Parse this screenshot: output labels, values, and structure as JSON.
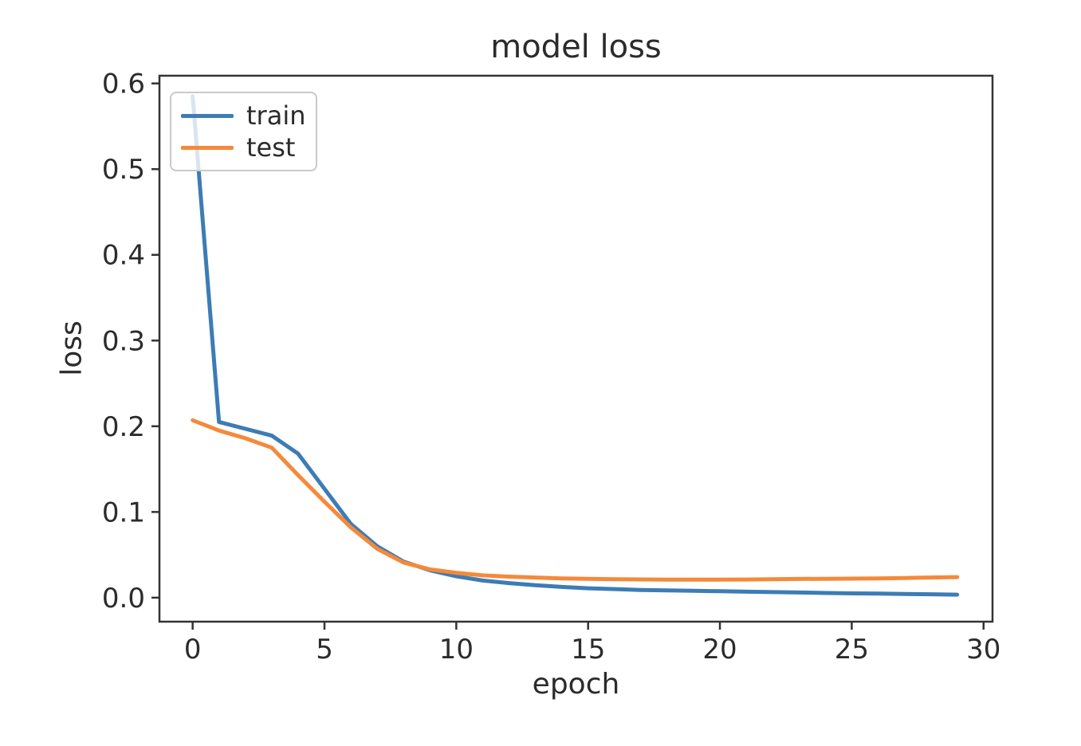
{
  "figure": {
    "background": "#ffffff",
    "text_color": "#2b2b2b",
    "spine_color": "#333333"
  },
  "chart_data": {
    "type": "line",
    "title": "model loss",
    "xlabel": "epoch",
    "ylabel": "loss",
    "grid": false,
    "legend": {
      "position": "upper left",
      "entries": [
        "train",
        "test"
      ]
    },
    "xlim": [
      -1.26,
      30.34
    ],
    "ylim": [
      -0.028,
      0.609
    ],
    "x_ticks": [
      0,
      5,
      10,
      15,
      20,
      25,
      30
    ],
    "x_tick_labels": [
      "0",
      "5",
      "10",
      "15",
      "20",
      "25",
      "30"
    ],
    "y_ticks": [
      0.0,
      0.1,
      0.2,
      0.3,
      0.4,
      0.5,
      0.6
    ],
    "y_tick_labels": [
      "0.0",
      "0.1",
      "0.2",
      "0.3",
      "0.4",
      "0.5",
      "0.6"
    ],
    "x": [
      0,
      1,
      2,
      3,
      4,
      5,
      6,
      7,
      8,
      9,
      10,
      11,
      12,
      13,
      14,
      15,
      16,
      17,
      18,
      19,
      20,
      21,
      22,
      23,
      24,
      25,
      26,
      27,
      28,
      29
    ],
    "series": [
      {
        "name": "train",
        "color": "#3d7cb5",
        "values": [
          0.585,
          0.205,
          0.197,
          0.189,
          0.168,
          0.127,
          0.086,
          0.06,
          0.042,
          0.032,
          0.025,
          0.02,
          0.017,
          0.0145,
          0.0125,
          0.011,
          0.01,
          0.009,
          0.0085,
          0.008,
          0.0075,
          0.007,
          0.0065,
          0.006,
          0.0055,
          0.005,
          0.0047,
          0.0043,
          0.004,
          0.0035
        ]
      },
      {
        "name": "test",
        "color": "#f5893b",
        "values": [
          0.207,
          0.195,
          0.186,
          0.175,
          0.143,
          0.112,
          0.082,
          0.057,
          0.041,
          0.033,
          0.029,
          0.026,
          0.0245,
          0.0235,
          0.0225,
          0.022,
          0.0215,
          0.0213,
          0.021,
          0.021,
          0.021,
          0.0212,
          0.0215,
          0.0218,
          0.022,
          0.0222,
          0.0225,
          0.023,
          0.0235,
          0.024
        ]
      }
    ]
  }
}
